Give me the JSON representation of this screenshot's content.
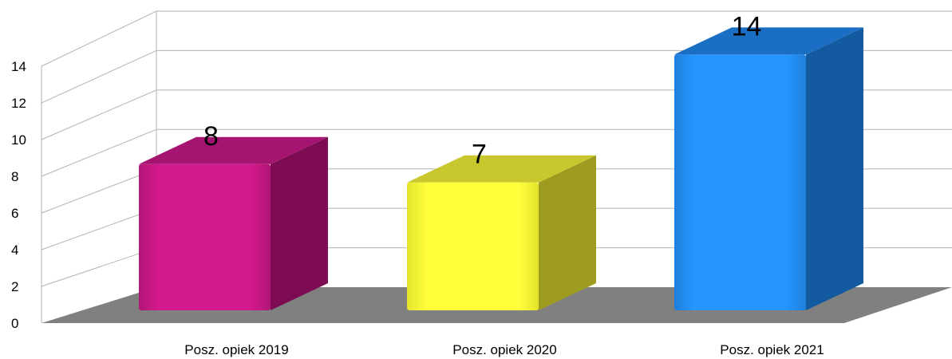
{
  "chart_data": {
    "type": "bar",
    "categories": [
      "Posz. opiek 2019",
      "Posz. opiek 2020",
      "Posz. opiek 2021"
    ],
    "values": [
      8,
      7,
      14
    ],
    "ylim": [
      0,
      14
    ],
    "yticks": [
      "0",
      "2",
      "4",
      "6",
      "8",
      "10",
      "12",
      "14"
    ],
    "data_labels": [
      "8",
      "7",
      "14"
    ],
    "grid": true,
    "colors": {
      "bars_front": [
        "#d4198e",
        "#ffff3a",
        "#2596ff"
      ],
      "bars_side": [
        "#7d0c52",
        "#9e9c20",
        "#145aa0"
      ],
      "bars_top": [
        "#a51470",
        "#c9c72e",
        "#1a6ec4"
      ],
      "floor": "#808080",
      "grid": "#b3b3b3"
    }
  }
}
